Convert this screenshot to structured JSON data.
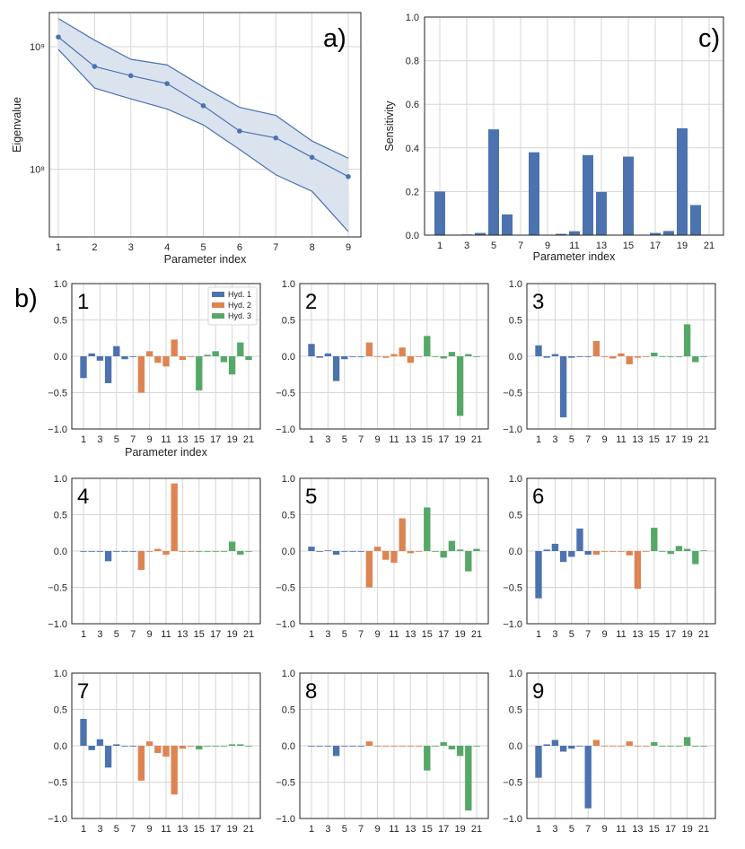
{
  "panel_letters": {
    "a": "a)",
    "b": "b)",
    "c": "c)"
  },
  "chart_data": [
    {
      "id": "a",
      "type": "line",
      "yscale": "log",
      "xlabel": "Parameter index",
      "ylabel": "Eigenvalue",
      "x": [
        1,
        2,
        3,
        4,
        5,
        6,
        7,
        8,
        9
      ],
      "x_ticks": [
        "1",
        "2",
        "3",
        "4",
        "5",
        "6",
        "7",
        "8",
        "9"
      ],
      "y_ticks": [
        {
          "value": 100000000,
          "label": "10⁸"
        },
        {
          "value": 1000000000,
          "label": "10⁹"
        }
      ],
      "ylim": [
        28000000,
        1900000000
      ],
      "series": [
        {
          "role": "central",
          "values": [
            1200000000,
            690000000,
            580000000,
            500000000,
            330000000,
            205000000,
            180000000,
            125000000,
            87000000
          ]
        },
        {
          "role": "upper",
          "values": [
            1700000000,
            1130000000,
            790000000,
            710000000,
            470000000,
            320000000,
            275000000,
            170000000,
            123000000
          ]
        },
        {
          "role": "lower",
          "values": [
            950000000,
            460000000,
            375000000,
            310000000,
            230000000,
            145000000,
            90000000,
            66000000,
            31000000
          ]
        }
      ],
      "colors": {
        "line": "#4c72b0",
        "fill": "#dbe3ef"
      },
      "grid": true
    },
    {
      "id": "c",
      "type": "bar",
      "xlabel": "Parameter index",
      "ylabel": "Sensitivity",
      "categories": [
        1,
        2,
        3,
        4,
        5,
        6,
        7,
        8,
        9,
        10,
        11,
        12,
        13,
        14,
        15,
        16,
        17,
        18,
        19,
        20,
        21
      ],
      "values": [
        0.2,
        0.0,
        0.003,
        0.01,
        0.485,
        0.095,
        0.0,
        0.38,
        0.0,
        0.006,
        0.018,
        0.367,
        0.198,
        0.0,
        0.36,
        0.0,
        0.01,
        0.019,
        0.49,
        0.138,
        0.0
      ],
      "x_ticks": [
        "1",
        "3",
        "5",
        "7",
        "9",
        "11",
        "13",
        "15",
        "17",
        "19",
        "21"
      ],
      "y_ticks": [
        "0.0",
        "0.2",
        "0.4",
        "0.6",
        "0.8",
        "1.0"
      ],
      "ylim": [
        0,
        1
      ],
      "color": "#4c72b0",
      "grid": true
    },
    {
      "id": "b",
      "type": "bar",
      "xlabel_first": "Parameter index",
      "ylim": [
        -1,
        1
      ],
      "y_ticks": [
        "1.0",
        "0.5",
        "0.0",
        "−0.5",
        "−1.0"
      ],
      "x_ticks": [
        "1",
        "3",
        "5",
        "7",
        "9",
        "11",
        "13",
        "15",
        "17",
        "19",
        "21"
      ],
      "groups": [
        {
          "name": "Hyd. 1",
          "color": "#4c72b0",
          "params": [
            1,
            2,
            3,
            4,
            5,
            6,
            7
          ]
        },
        {
          "name": "Hyd. 2",
          "color": "#dd8452",
          "params": [
            8,
            9,
            10,
            11,
            12,
            13,
            14
          ]
        },
        {
          "name": "Hyd. 3",
          "color": "#55a868",
          "params": [
            15,
            16,
            17,
            18,
            19,
            20,
            21
          ]
        }
      ],
      "legend_position": "top-right of first subplot",
      "subplots": [
        {
          "label": "1",
          "values": [
            -0.3,
            0.04,
            -0.06,
            -0.37,
            0.14,
            -0.04,
            0.0,
            -0.5,
            0.07,
            -0.09,
            -0.14,
            0.23,
            -0.05,
            0.0,
            -0.47,
            0.02,
            0.07,
            -0.08,
            -0.25,
            0.19,
            -0.05
          ]
        },
        {
          "label": "2",
          "values": [
            0.17,
            -0.02,
            0.04,
            -0.34,
            -0.04,
            0.0,
            0.0,
            0.19,
            0.0,
            -0.02,
            0.03,
            0.12,
            -0.09,
            0.0,
            0.28,
            0.0,
            -0.03,
            0.06,
            -0.82,
            0.03,
            0.0
          ]
        },
        {
          "label": "3",
          "values": [
            0.15,
            -0.02,
            0.03,
            -0.84,
            -0.02,
            0.0,
            0.0,
            0.21,
            0.0,
            -0.03,
            0.04,
            -0.11,
            -0.02,
            0.0,
            0.05,
            0.0,
            0.0,
            0.0,
            0.44,
            -0.08,
            0.0
          ]
        },
        {
          "label": "4",
          "values": [
            0.0,
            0.0,
            0.0,
            -0.14,
            0.0,
            0.0,
            0.0,
            -0.26,
            0.0,
            0.03,
            -0.05,
            0.93,
            -0.01,
            0.0,
            0.0,
            0.0,
            0.0,
            0.0,
            0.13,
            -0.05,
            0.0
          ]
        },
        {
          "label": "5",
          "values": [
            0.06,
            -0.01,
            0.01,
            -0.05,
            0.0,
            0.0,
            0.0,
            -0.5,
            0.06,
            -0.12,
            -0.16,
            0.45,
            -0.03,
            0.0,
            0.6,
            -0.01,
            -0.09,
            0.14,
            0.02,
            -0.28,
            0.03
          ]
        },
        {
          "label": "6",
          "values": [
            -0.65,
            0.02,
            0.1,
            -0.15,
            -0.08,
            0.31,
            -0.05,
            -0.05,
            0.0,
            0.0,
            0.0,
            -0.06,
            -0.52,
            0.0,
            0.32,
            0.0,
            -0.04,
            0.07,
            0.03,
            -0.18,
            0.01
          ]
        },
        {
          "label": "7",
          "values": [
            0.37,
            -0.06,
            0.09,
            -0.3,
            0.02,
            0.0,
            0.0,
            -0.48,
            0.06,
            -0.1,
            -0.15,
            -0.67,
            -0.04,
            0.0,
            -0.05,
            0.0,
            0.0,
            0.0,
            0.02,
            0.02,
            0.0
          ]
        },
        {
          "label": "8",
          "values": [
            0.0,
            0.0,
            0.0,
            -0.14,
            0.0,
            0.0,
            0.0,
            0.06,
            0.0,
            0.0,
            0.0,
            0.0,
            0.0,
            0.0,
            -0.34,
            0.0,
            0.05,
            -0.05,
            -0.14,
            -0.89,
            0.0
          ]
        },
        {
          "label": "9",
          "values": [
            -0.44,
            0.02,
            0.08,
            -0.08,
            -0.04,
            0.0,
            -0.86,
            0.08,
            0.0,
            0.0,
            0.0,
            0.06,
            0.0,
            0.0,
            0.05,
            0.0,
            0.0,
            0.0,
            0.12,
            0.0,
            0.0
          ]
        }
      ]
    }
  ]
}
